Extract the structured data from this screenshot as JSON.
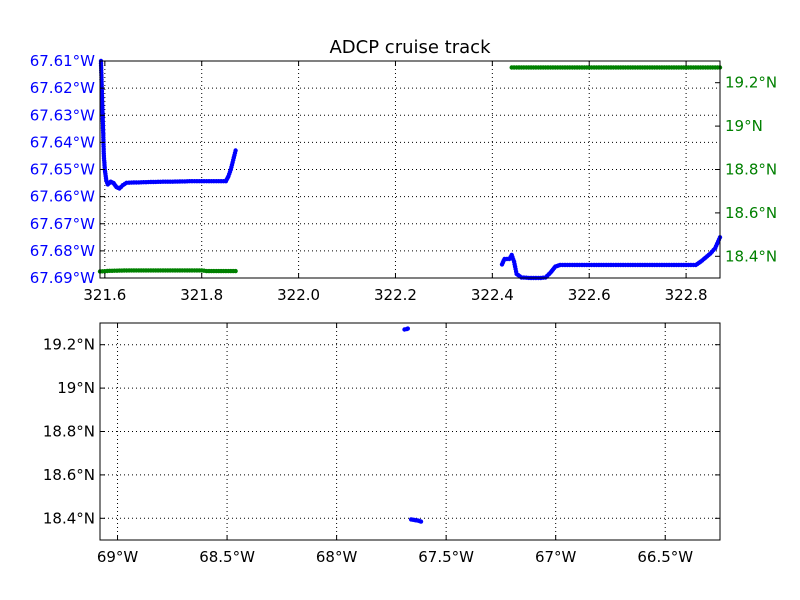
{
  "colors": {
    "blue": "#0000ff",
    "green": "#008000",
    "axis": "#000000",
    "grid": "#000000",
    "background": "#ffffff"
  },
  "chart_data": [
    {
      "type": "scatter",
      "title": "ADCP cruise track",
      "grid": true,
      "xlim": [
        321.59,
        322.87
      ],
      "ylim_left": [
        67.69,
        67.61
      ],
      "ylim_right": [
        18.3,
        19.3
      ],
      "x_ticks": [
        {
          "value": 321.6,
          "label": "321.6"
        },
        {
          "value": 321.8,
          "label": "321.8"
        },
        {
          "value": 322.0,
          "label": "322.0"
        },
        {
          "value": 322.2,
          "label": "322.2"
        },
        {
          "value": 322.4,
          "label": "322.4"
        },
        {
          "value": 322.6,
          "label": "322.6"
        },
        {
          "value": 322.8,
          "label": "322.8"
        }
      ],
      "y_left_ticks": [
        {
          "value": 67.61,
          "label": "67.61°W"
        },
        {
          "value": 67.62,
          "label": "67.62°W"
        },
        {
          "value": 67.63,
          "label": "67.63°W"
        },
        {
          "value": 67.64,
          "label": "67.64°W"
        },
        {
          "value": 67.65,
          "label": "67.65°W"
        },
        {
          "value": 67.66,
          "label": "67.66°W"
        },
        {
          "value": 67.67,
          "label": "67.67°W"
        },
        {
          "value": 67.68,
          "label": "67.68°W"
        },
        {
          "value": 67.69,
          "label": "67.69°W"
        }
      ],
      "y_right_ticks": [
        {
          "value": 19.2,
          "label": "19.2°N"
        },
        {
          "value": 19.0,
          "label": "19°N"
        },
        {
          "value": 18.8,
          "label": "18.8°N"
        },
        {
          "value": 18.6,
          "label": "18.6°N"
        },
        {
          "value": 18.4,
          "label": "18.4°N"
        }
      ],
      "series": [
        {
          "axis": "left",
          "color": "#0000ff",
          "segments": [
            [
              [
                321.592,
                67.61
              ],
              [
                321.593,
                67.616
              ],
              [
                321.594,
                67.622
              ],
              [
                321.595,
                67.628
              ],
              [
                321.596,
                67.633
              ],
              [
                321.597,
                67.639
              ],
              [
                321.598,
                67.645
              ],
              [
                321.6,
                67.65
              ],
              [
                321.603,
                67.654
              ],
              [
                321.606,
                67.6555
              ],
              [
                321.612,
                67.6545
              ],
              [
                321.618,
                67.655
              ],
              [
                321.624,
                67.6565
              ],
              [
                321.63,
                67.657
              ],
              [
                321.637,
                67.6558
              ],
              [
                321.645,
                67.6549
              ],
              [
                321.66,
                67.6548
              ],
              [
                321.68,
                67.6547
              ],
              [
                321.7,
                67.6546
              ],
              [
                321.72,
                67.6545
              ],
              [
                321.74,
                67.6545
              ],
              [
                321.76,
                67.6544
              ],
              [
                321.78,
                67.6543
              ],
              [
                321.8,
                67.6543
              ],
              [
                321.82,
                67.6543
              ],
              [
                321.84,
                67.6543
              ],
              [
                321.85,
                67.6543
              ],
              [
                321.855,
                67.6525
              ],
              [
                321.86,
                67.65
              ],
              [
                321.865,
                67.6465
              ],
              [
                321.87,
                67.643
              ]
            ],
            [
              [
                322.42,
                67.685
              ],
              [
                322.425,
                67.683
              ],
              [
                322.435,
                67.683
              ],
              [
                322.44,
                67.6815
              ],
              [
                322.445,
                67.684
              ],
              [
                322.45,
                67.6885
              ],
              [
                322.46,
                67.6898
              ],
              [
                322.48,
                67.69
              ],
              [
                322.5,
                67.69
              ],
              [
                322.51,
                67.6898
              ],
              [
                322.52,
                67.688
              ],
              [
                322.53,
                67.6858
              ],
              [
                322.54,
                67.6852
              ],
              [
                322.56,
                67.6852
              ],
              [
                322.6,
                67.6852
              ],
              [
                322.65,
                67.6852
              ],
              [
                322.7,
                67.6852
              ],
              [
                322.75,
                67.6852
              ],
              [
                322.8,
                67.6852
              ],
              [
                322.82,
                67.6852
              ],
              [
                322.83,
                67.684
              ],
              [
                322.84,
                67.6825
              ],
              [
                322.85,
                67.681
              ],
              [
                322.86,
                67.679
              ],
              [
                322.87,
                67.675
              ]
            ]
          ]
        },
        {
          "axis": "right",
          "color": "#008000",
          "segments": [
            [
              [
                321.59,
                18.33
              ],
              [
                321.61,
                18.333
              ],
              [
                321.65,
                18.335
              ],
              [
                321.7,
                18.335
              ],
              [
                321.75,
                18.335
              ],
              [
                321.8,
                18.335
              ],
              [
                321.81,
                18.332
              ],
              [
                321.84,
                18.332
              ],
              [
                321.87,
                18.332
              ]
            ],
            [
              [
                322.44,
                19.27
              ],
              [
                322.5,
                19.27
              ],
              [
                322.6,
                19.27
              ],
              [
                322.7,
                19.27
              ],
              [
                322.8,
                19.27
              ],
              [
                322.87,
                19.27
              ]
            ]
          ]
        }
      ]
    },
    {
      "type": "scatter",
      "grid": true,
      "xlim": [
        -69.08,
        -66.25
      ],
      "ylim": [
        18.3,
        19.3
      ],
      "x_ticks": [
        {
          "value": -69.0,
          "label": "69°W"
        },
        {
          "value": -68.5,
          "label": "68.5°W"
        },
        {
          "value": -68.0,
          "label": "68°W"
        },
        {
          "value": -67.5,
          "label": "67.5°W"
        },
        {
          "value": -67.0,
          "label": "67°W"
        },
        {
          "value": -66.5,
          "label": "66.5°W"
        }
      ],
      "y_ticks": [
        {
          "value": 19.2,
          "label": "19.2°N"
        },
        {
          "value": 19.0,
          "label": "19°N"
        },
        {
          "value": 18.8,
          "label": "18.8°N"
        },
        {
          "value": 18.6,
          "label": "18.6°N"
        },
        {
          "value": 18.4,
          "label": "18.4°N"
        }
      ],
      "series": [
        {
          "color": "#0000ff",
          "segments": [
            [
              [
                -67.69,
                19.27
              ],
              [
                -67.68,
                19.272
              ],
              [
                -67.675,
                19.274
              ]
            ],
            [
              [
                -67.66,
                18.395
              ],
              [
                -67.645,
                18.392
              ],
              [
                -67.63,
                18.39
              ],
              [
                -67.615,
                18.385
              ]
            ]
          ]
        }
      ]
    }
  ]
}
